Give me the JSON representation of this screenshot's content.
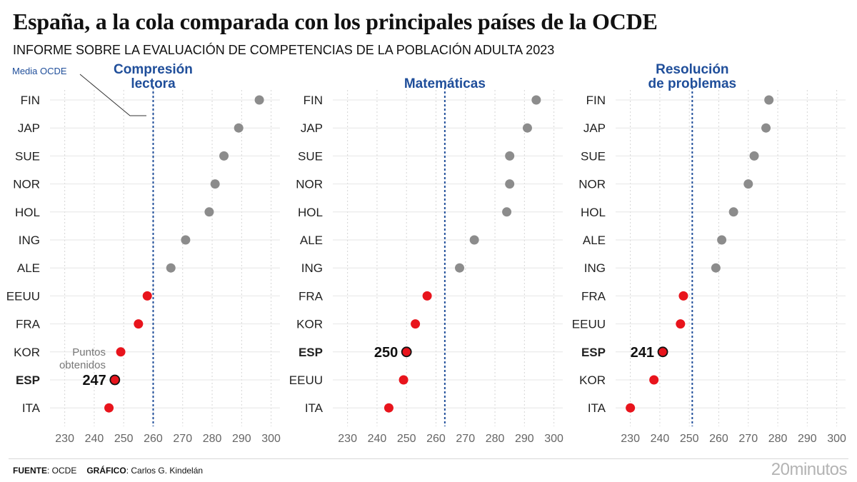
{
  "title": "España, a la cola comparada con los principales países de la OCDE",
  "subtitle": "INFORME SOBRE LA EVALUACIÓN DE COMPETENCIAS DE LA POBLACIÓN ADULTA 2023",
  "footer": {
    "source_label": "FUENTE",
    "source_value": ": OCDE",
    "graphic_label": "GRÁFICO",
    "graphic_value": ": Carlos G. Kindelán"
  },
  "logo": "20minutos",
  "annotations": {
    "oecd_mean_label": "Media OCDE",
    "points_label_line1": "Puntos",
    "points_label_line2": "obtenidos"
  },
  "colors": {
    "grey_dot": "#8c8c8c",
    "red_dot": "#e8141c",
    "mean_line": "#1f4e9a",
    "panel_title": "#1f4e9a",
    "grid": "#d5d5d5"
  },
  "chart_data": [
    {
      "type": "scatter",
      "title": [
        "Compresión",
        "lectora"
      ],
      "xlim": [
        225,
        303
      ],
      "xticks": [
        230,
        240,
        250,
        260,
        270,
        280,
        290,
        300
      ],
      "oecd_mean": 260,
      "highlight": "ESP",
      "highlight_label": "247",
      "categories": [
        "FIN",
        "JAP",
        "SUE",
        "NOR",
        "HOL",
        "ING",
        "ALE",
        "EEUU",
        "FRA",
        "KOR",
        "ESP",
        "ITA"
      ],
      "values": [
        296,
        289,
        284,
        281,
        279,
        271,
        266,
        258,
        255,
        249,
        247,
        245
      ],
      "colors": [
        "grey",
        "grey",
        "grey",
        "grey",
        "grey",
        "grey",
        "grey",
        "red",
        "red",
        "red",
        "red",
        "red"
      ]
    },
    {
      "type": "scatter",
      "title": [
        "Matemáticas"
      ],
      "xlim": [
        225,
        303
      ],
      "xticks": [
        230,
        240,
        250,
        260,
        270,
        280,
        290,
        300
      ],
      "oecd_mean": 263,
      "highlight": "ESP",
      "highlight_label": "250",
      "categories": [
        "FIN",
        "JAP",
        "SUE",
        "NOR",
        "HOL",
        "ALE",
        "ING",
        "FRA",
        "KOR",
        "ESP",
        "EEUU",
        "ITA"
      ],
      "values": [
        294,
        291,
        285,
        285,
        284,
        273,
        268,
        257,
        253,
        250,
        249,
        244
      ],
      "colors": [
        "grey",
        "grey",
        "grey",
        "grey",
        "grey",
        "grey",
        "grey",
        "red",
        "red",
        "red",
        "red",
        "red"
      ]
    },
    {
      "type": "scatter",
      "title": [
        "Resolución",
        "de problemas"
      ],
      "xlim": [
        225,
        303
      ],
      "xticks": [
        230,
        240,
        250,
        260,
        270,
        280,
        290,
        300
      ],
      "oecd_mean": 251,
      "highlight": "ESP",
      "highlight_label": "241",
      "categories": [
        "FIN",
        "JAP",
        "SUE",
        "NOR",
        "HOL",
        "ALE",
        "ING",
        "FRA",
        "EEUU",
        "ESP",
        "KOR",
        "ITA"
      ],
      "values": [
        277,
        276,
        272,
        270,
        265,
        261,
        259,
        248,
        247,
        241,
        238,
        230
      ],
      "colors": [
        "grey",
        "grey",
        "grey",
        "grey",
        "grey",
        "grey",
        "grey",
        "red",
        "red",
        "red",
        "red",
        "red"
      ]
    }
  ]
}
